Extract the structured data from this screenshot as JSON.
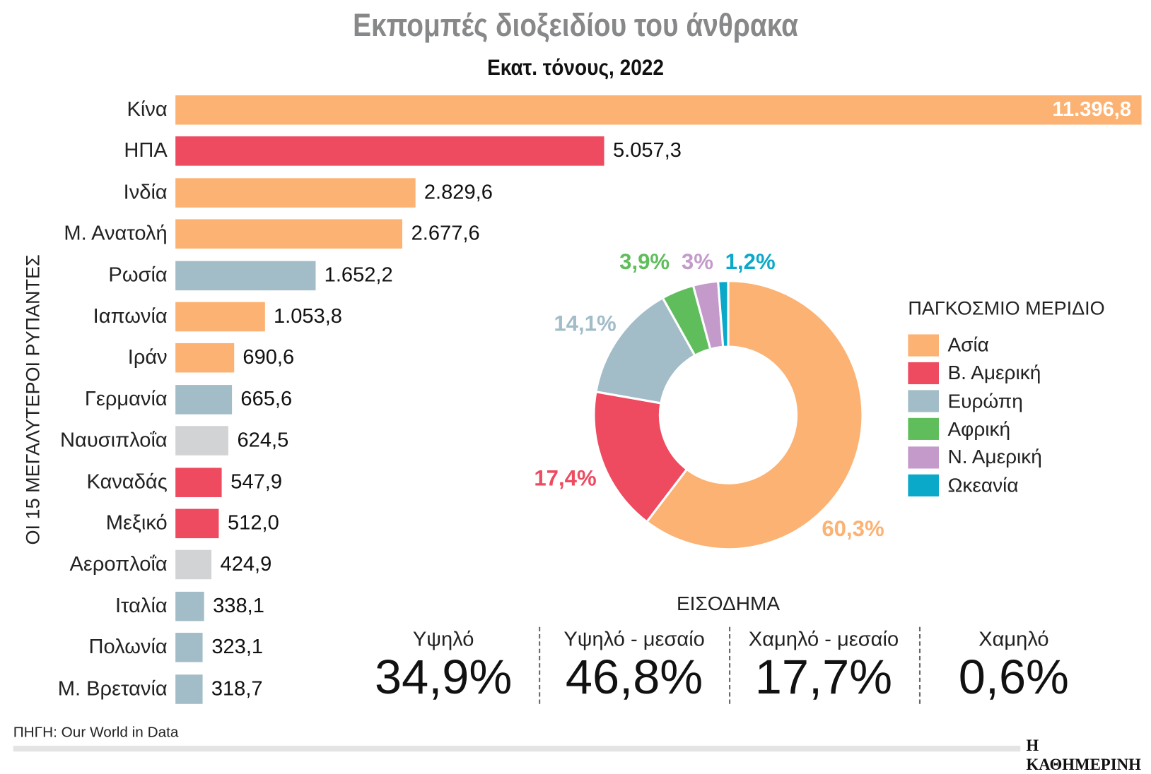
{
  "header": {
    "title": "Εκπομπές διοξειδίου του άνθρακα",
    "subtitle": "Εκατ. τόνους, 2022"
  },
  "chart_data": [
    {
      "type": "bar",
      "orientation": "horizontal",
      "axis_label": "ΟΙ 15 ΜΕΓΑΛΥΤΕΡΟΙ ΡΥΠΑΝΤΕΣ",
      "categories": [
        "Κίνα",
        "ΗΠΑ",
        "Ινδία",
        "Μ. Ανατολή",
        "Ρωσία",
        "Ιαπωνία",
        "Ιράν",
        "Γερμανία",
        "Ναυσιπλοΐα",
        "Καναδάς",
        "Μεξικό",
        "Αεροπλοΐα",
        "Ιταλία",
        "Πολωνία",
        "Μ. Βρετανία"
      ],
      "values": [
        11396.8,
        5057.3,
        2829.6,
        2677.6,
        1652.2,
        1053.8,
        690.6,
        665.6,
        624.5,
        547.9,
        512.0,
        424.9,
        338.1,
        323.1,
        318.7
      ],
      "value_labels": [
        "11.396,8",
        "5.057,3",
        "2.829,6",
        "2.677,6",
        "1.652,2",
        "1.053,8",
        "690,6",
        "665,6",
        "624,5",
        "547,9",
        "512,0",
        "424,9",
        "338,1",
        "323,1",
        "318,7"
      ],
      "groups": [
        "asia",
        "namerica",
        "asia",
        "asia",
        "europe",
        "asia",
        "asia",
        "europe",
        "other",
        "namerica",
        "namerica",
        "other",
        "europe",
        "europe",
        "europe"
      ]
    },
    {
      "type": "pie",
      "subtype": "donut",
      "legend_title": "ΠΑΓΚΟΣΜΙΟ ΜΕΡΙΔΙΟ",
      "legend_position": "right",
      "slices": [
        {
          "key": "asia",
          "label": "Ασία",
          "value": 60.3,
          "text": "60,3%"
        },
        {
          "key": "namerica",
          "label": "Β. Αμερική",
          "value": 17.4,
          "text": "17,4%"
        },
        {
          "key": "europe",
          "label": "Ευρώπη",
          "value": 14.1,
          "text": "14,1%"
        },
        {
          "key": "africa",
          "label": "Αφρική",
          "value": 3.9,
          "text": "3,9%"
        },
        {
          "key": "samerica",
          "label": "Ν. Αμερική",
          "value": 3.0,
          "text": "3%"
        },
        {
          "key": "oceania",
          "label": "Ωκεανία",
          "value": 1.2,
          "text": "1,2%"
        }
      ]
    },
    {
      "type": "table",
      "title": "ΕΙΣΟΔΗΜΑ",
      "columns": [
        {
          "label": "Υψηλό",
          "value": 34.9,
          "text": "34,9%"
        },
        {
          "label": "Υψηλό - μεσαίο",
          "value": 46.8,
          "text": "46,8%"
        },
        {
          "label": "Χαμηλό - μεσαίο",
          "value": 17.7,
          "text": "17,7%"
        },
        {
          "label": "Χαμηλό",
          "value": 0.6,
          "text": "0,6%"
        }
      ]
    }
  ],
  "colors": {
    "asia": "#FBB272",
    "namerica": "#EE4A60",
    "europe": "#A2BCC8",
    "africa": "#5FBE5B",
    "samerica": "#C49ACB",
    "oceania": "#0AA9C9",
    "other": "#D2D3D5",
    "title": "#87888a"
  },
  "footer": {
    "source": "ΠΗΓΗ: Our World in Data",
    "brand": "Η ΚΑΘΗΜΕΡΙΝΗ"
  }
}
